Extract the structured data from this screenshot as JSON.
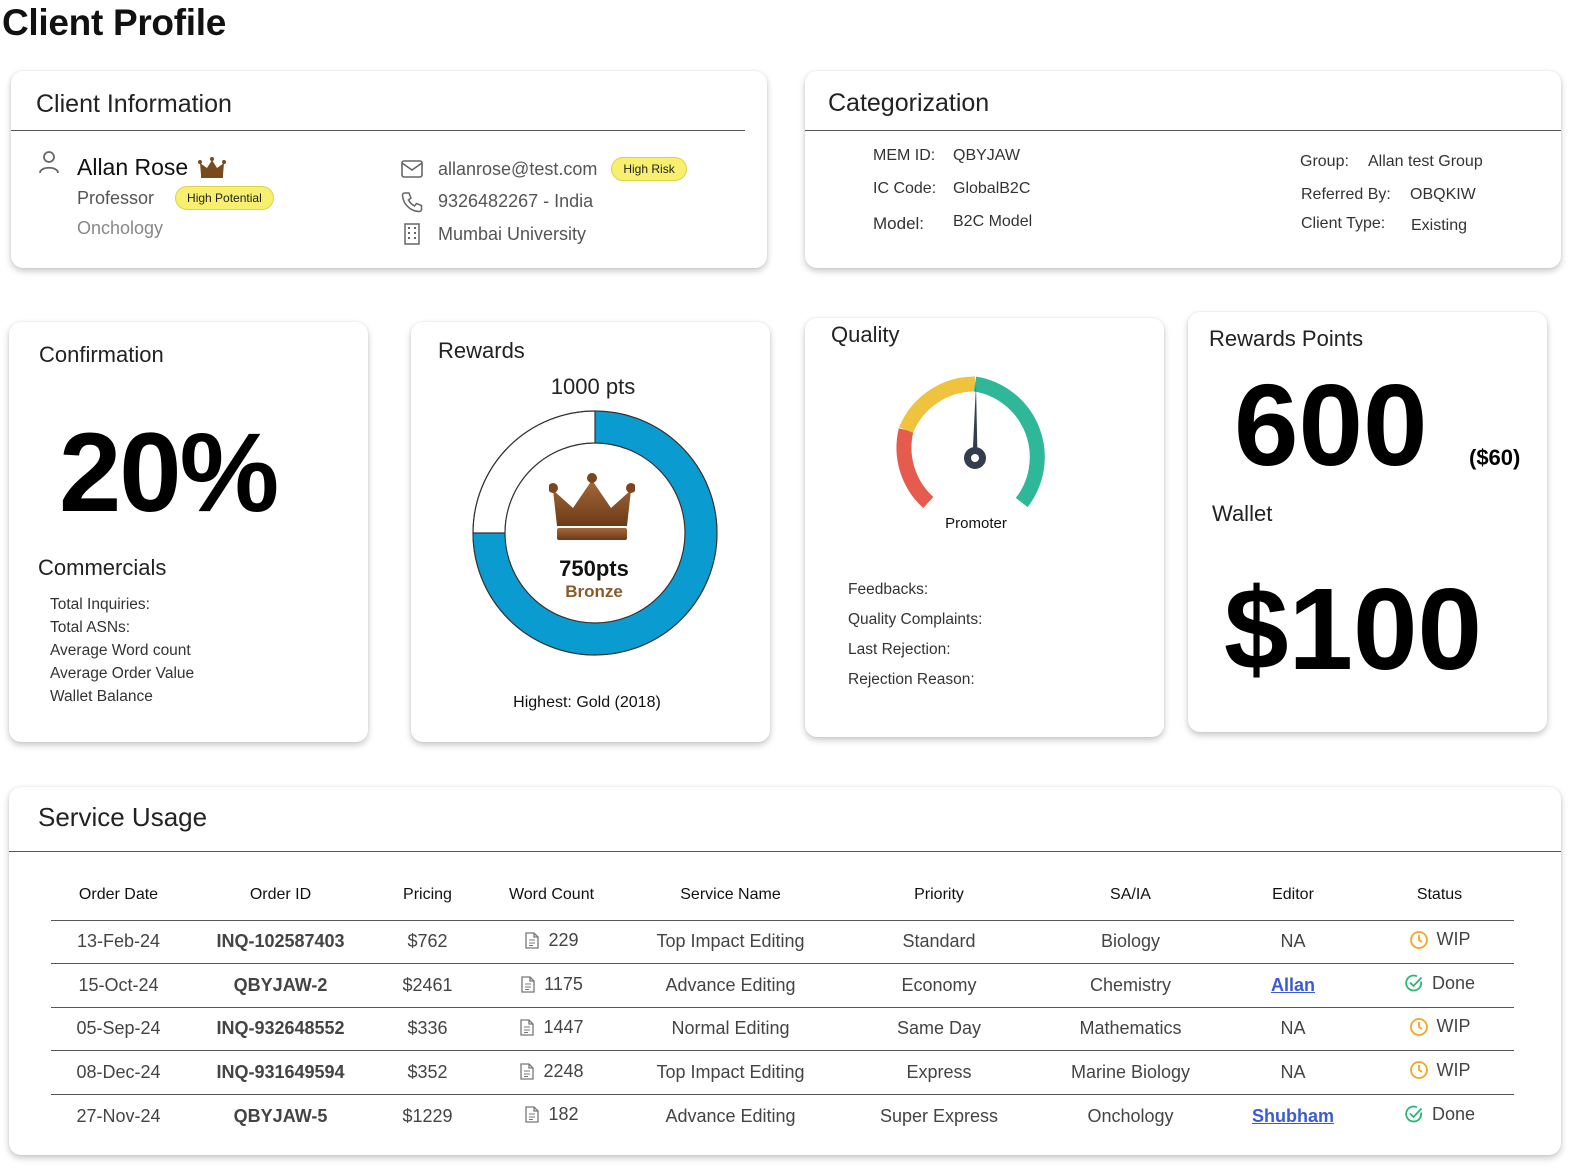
{
  "page": {
    "title": "Client Profile"
  },
  "client_info": {
    "title": "Client Information",
    "name": "Allan Rose",
    "role": "Professor",
    "potential_badge": "High Potential",
    "department": "Onchology",
    "email": "allanrose@test.com",
    "risk_badge": "High Risk",
    "phone": "9326482267 - India",
    "organization": "Mumbai University",
    "icons": [
      "user-icon",
      "crown-icon",
      "mail-icon",
      "phone-icon",
      "building-icon"
    ]
  },
  "categorization": {
    "title": "Categorization",
    "mem_id_label": "MEM ID:",
    "mem_id": "QBYJAW",
    "ic_code_label": "IC Code:",
    "ic_code": "GlobalB2C",
    "model_label": "Model:",
    "model": "B2C Model",
    "group_label": "Group:",
    "group": "Allan test Group",
    "referred_label": "Referred By:",
    "referred": "OBQKIW",
    "client_type_label": "Client Type:",
    "client_type": "Existing"
  },
  "confirmation": {
    "title": "Confirmation",
    "value": "20%",
    "commercials_title": "Commercials",
    "items": [
      "Total Inquiries:",
      "Total ASNs:",
      "Average Word count",
      "Average Order Value",
      "Wallet Balance"
    ]
  },
  "rewards": {
    "title": "Rewards",
    "target": "1000 pts",
    "points": "750pts",
    "tier": "Bronze",
    "highest": "Highest: Gold (2018)",
    "progress": 0.75,
    "ring_color": "#0a9bd0",
    "tier_color": "#8a5a2b"
  },
  "quality": {
    "title": "Quality",
    "gauge_label": "Promoter",
    "items": [
      "Feedbacks:",
      "Quality Complaints:",
      "Last Rejection:",
      "Rejection Reason:"
    ]
  },
  "reward_points": {
    "title": "Rewards Points",
    "points": "600",
    "points_value": "($60)",
    "wallet_title": "Wallet",
    "wallet": "$100"
  },
  "service_usage": {
    "title": "Service Usage",
    "columns": [
      "Order Date",
      "Order ID",
      "Pricing",
      "Word Count",
      "Service Name",
      "Priority",
      "SA/IA",
      "Editor",
      "Status"
    ],
    "rows": [
      {
        "date": "13-Feb-24",
        "id": "INQ-102587403",
        "price": "$762",
        "words": "229",
        "service": "Top Impact Editing",
        "priority": "Standard",
        "sa": "Biology",
        "editor": "NA",
        "editor_link": false,
        "status": "WIP"
      },
      {
        "date": "15-Oct-24",
        "id": "QBYJAW-2",
        "price": "$2461",
        "words": "1175",
        "service": "Advance Editing",
        "priority": "Economy",
        "sa": "Chemistry",
        "editor": "Allan",
        "editor_link": true,
        "status": "Done"
      },
      {
        "date": "05-Sep-24",
        "id": "INQ-932648552",
        "price": "$336",
        "words": "1447",
        "service": "Normal Editing",
        "priority": "Same Day",
        "sa": "Mathematics",
        "editor": "NA",
        "editor_link": false,
        "status": "WIP"
      },
      {
        "date": "08-Dec-24",
        "id": "INQ-931649594",
        "price": "$352",
        "words": "2248",
        "service": "Top Impact Editing",
        "priority": "Express",
        "sa": "Marine Biology",
        "editor": "NA",
        "editor_link": false,
        "status": "WIP"
      },
      {
        "date": "27-Nov-24",
        "id": "QBYJAW-5",
        "price": "$1229",
        "words": "182",
        "service": "Advance Editing",
        "priority": "Super Express",
        "sa": "Onchology",
        "editor": "Shubham",
        "editor_link": true,
        "status": "Done"
      }
    ],
    "status_colors": {
      "WIP": "#f5a623",
      "Done": "#2bb673"
    }
  }
}
